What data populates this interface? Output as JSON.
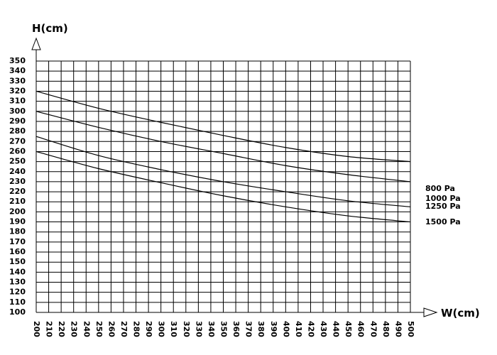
{
  "chart_data": {
    "type": "line",
    "xlabel": "W(cm)",
    "ylabel": "H(cm)",
    "xlim": [
      200,
      500
    ],
    "ylim": [
      100,
      350
    ],
    "x_ticks": [
      200,
      210,
      220,
      230,
      240,
      250,
      260,
      270,
      280,
      290,
      300,
      310,
      320,
      330,
      340,
      350,
      360,
      370,
      380,
      390,
      400,
      410,
      420,
      430,
      440,
      450,
      460,
      470,
      480,
      490,
      500
    ],
    "y_ticks": [
      100,
      110,
      120,
      130,
      140,
      150,
      160,
      170,
      180,
      190,
      200,
      210,
      220,
      230,
      240,
      250,
      260,
      270,
      280,
      290,
      300,
      310,
      320,
      330,
      340,
      350
    ],
    "grid": true,
    "legend": "right-of-curves",
    "series": [
      {
        "name": "800 Pa",
        "x": [
          200,
          250,
          300,
          350,
          400,
          450,
          500
        ],
        "y": [
          320,
          303,
          289,
          276,
          264,
          255,
          250
        ]
      },
      {
        "name": "1000 Pa",
        "x": [
          200,
          250,
          300,
          350,
          400,
          450,
          500
        ],
        "y": [
          300,
          284,
          270,
          258,
          246,
          237,
          230
        ]
      },
      {
        "name": "1250 Pa",
        "x": [
          200,
          250,
          300,
          350,
          400,
          450,
          500
        ],
        "y": [
          275,
          256,
          242,
          230,
          220,
          211,
          205
        ]
      },
      {
        "name": "1500 Pa",
        "x": [
          200,
          250,
          300,
          350,
          400,
          450,
          500
        ],
        "y": [
          260,
          243,
          229,
          216,
          205,
          196,
          190
        ]
      }
    ]
  }
}
